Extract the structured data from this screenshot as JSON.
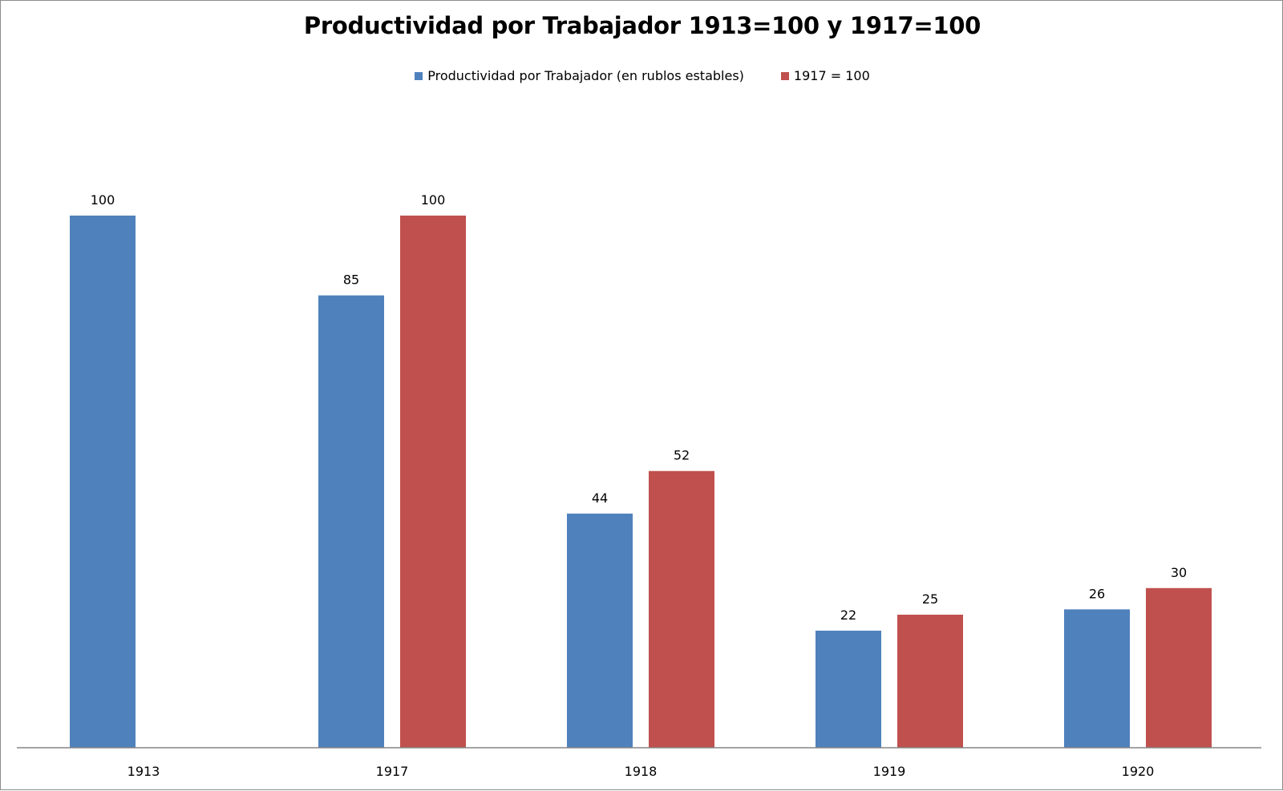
{
  "chart_data": {
    "type": "bar",
    "title": "Productividad por Trabajador 1913=100 y 1917=100",
    "categories": [
      "1913",
      "1917",
      "1918",
      "1919",
      "1920"
    ],
    "series": [
      {
        "name": "Productividad por Trabajador (en rublos estables)",
        "color": "#4F81BD",
        "values": [
          100,
          85,
          44,
          22,
          26
        ]
      },
      {
        "name": "1917 = 100",
        "color": "#C0504D",
        "values": [
          null,
          100,
          52,
          25,
          30
        ]
      }
    ],
    "ylim": [
      0,
      100
    ],
    "grid": false,
    "legend_position": "top"
  }
}
